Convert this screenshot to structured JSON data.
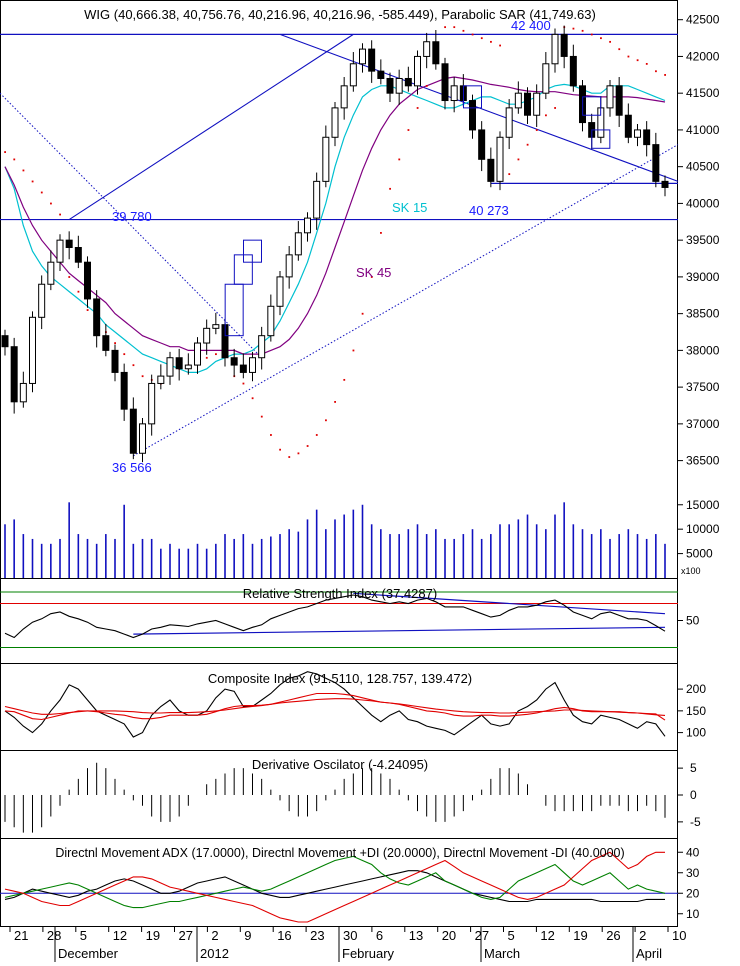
{
  "chart_data": [
    {
      "type": "candlestick",
      "title": "WIG (40,666.38, 40,756.76, 40,216.96, 40,216.96, -585.449), Parabolic SAR (41,749.63)",
      "ylim": [
        36100,
        42700
      ],
      "yticks": [
        36500,
        37000,
        37500,
        38000,
        38500,
        39000,
        39500,
        40000,
        40500,
        41000,
        41500,
        42000,
        42500
      ],
      "close": [
        38050,
        37300,
        37550,
        38450,
        38900,
        39200,
        39500,
        39400,
        39200,
        38700,
        38200,
        38000,
        37700,
        37200,
        36600,
        37000,
        37550,
        37650,
        37900,
        37750,
        37800,
        38100,
        38300,
        38350,
        37900,
        37800,
        37700,
        37900,
        38200,
        38600,
        39000,
        39300,
        39600,
        39800,
        40300,
        40900,
        41300,
        41600,
        41900,
        42100,
        41800,
        41700,
        41500,
        41700,
        41600,
        42000,
        42200,
        41900,
        41400,
        41600,
        41400,
        41000,
        40600,
        40300,
        40900,
        41300,
        41500,
        41200,
        41500,
        41900,
        42300,
        42000,
        41600,
        41100,
        40900,
        41300,
        41600,
        41200,
        40900,
        41000,
        40800,
        40300,
        40217
      ],
      "sar": [
        40700,
        40600,
        40450,
        40300,
        40150,
        40000,
        39850,
        39000,
        38800,
        38550,
        38400,
        38250,
        38100,
        37950,
        37800,
        37650,
        37600,
        37550,
        37700,
        37750,
        37800,
        37850,
        37900,
        37950,
        38000,
        37650,
        37550,
        37350,
        37100,
        36850,
        36650,
        36550,
        36600,
        36700,
        36850,
        37050,
        37300,
        37600,
        38000,
        38500,
        39000,
        39600,
        40200,
        40600,
        41000,
        41300,
        41600,
        42000,
        42400,
        42400,
        42350,
        42300,
        42250,
        42200,
        42150,
        40400,
        40600,
        40800,
        41000,
        41200,
        41300,
        42400,
        42380,
        42350,
        42300,
        42250,
        42200,
        42100,
        42000,
        41950,
        41900,
        41800,
        41749.63
      ],
      "sma15": [
        40500,
        40200,
        39700,
        39350,
        39150,
        39000,
        38900,
        38800,
        38700,
        38600,
        38500,
        38350,
        38250,
        38150,
        38050,
        37950,
        37900,
        37850,
        37800,
        37750,
        37700,
        37700,
        37750,
        37850,
        37900,
        37950,
        37950,
        38000,
        38100,
        38200,
        38400,
        38650,
        38900,
        39200,
        39600,
        40000,
        40500,
        40900,
        41200,
        41450,
        41550,
        41600,
        41600,
        41550,
        41500,
        41450,
        41400,
        41350,
        41300,
        41300,
        41350,
        41400,
        41450,
        41450,
        41400,
        41350,
        41350,
        41400,
        41450,
        41550,
        41600,
        41620,
        41600,
        41550,
        41500,
        41500,
        41600,
        41600,
        41600,
        41550,
        41500,
        41450,
        41400
      ],
      "sma45": [
        40500,
        40250,
        39950,
        39700,
        39500,
        39350,
        39200,
        39050,
        38950,
        38850,
        38750,
        38650,
        38500,
        38400,
        38300,
        38200,
        38150,
        38100,
        38050,
        38050,
        38000,
        38000,
        38000,
        38000,
        38000,
        38000,
        37950,
        37950,
        37950,
        38000,
        38050,
        38150,
        38300,
        38500,
        38750,
        39050,
        39400,
        39750,
        40100,
        40450,
        40750,
        41000,
        41200,
        41350,
        41450,
        41550,
        41600,
        41650,
        41700,
        41720,
        41700,
        41680,
        41650,
        41620,
        41600,
        41580,
        41550,
        41530,
        41520,
        41520,
        41520,
        41500,
        41480,
        41470,
        41460,
        41450,
        41450,
        41450,
        41450,
        41440,
        41420,
        41400,
        41380
      ],
      "volume": [
        11000,
        12000,
        9000,
        8000,
        7000,
        7000,
        8000,
        15500,
        9000,
        8000,
        7000,
        9000,
        8000,
        15000,
        7000,
        8000,
        8000,
        6000,
        7000,
        6000,
        6000,
        7000,
        6000,
        7000,
        9000,
        8000,
        9000,
        7000,
        8000,
        8500,
        9000,
        10000,
        9500,
        12000,
        14000,
        10000,
        12000,
        13000,
        14000,
        15000,
        11000,
        10000,
        9000,
        9000,
        10000,
        11000,
        9000,
        10000,
        8000,
        8000,
        9000,
        10000,
        8000,
        9000,
        11000,
        11000,
        12000,
        13000,
        11000,
        10000,
        13000,
        15500,
        11000,
        10000,
        9000,
        10000,
        8000,
        9000,
        10000,
        9000,
        8000,
        9000,
        7000
      ],
      "volume_yticks": [
        5000,
        10000,
        15000
      ],
      "volume_unit": "x100",
      "annotations": [
        "36 566",
        "39 780",
        "42 400",
        "40 273",
        "SK 15",
        "SK 45"
      ]
    },
    {
      "type": "line",
      "title": "Relative Strength Index (37.4287)",
      "ylim": [
        0,
        100
      ],
      "yticks": [
        50
      ],
      "reference_lines": [
        30,
        70
      ],
      "values": [
        35,
        30,
        40,
        48,
        52,
        58,
        60,
        55,
        52,
        48,
        42,
        40,
        38,
        34,
        30,
        34,
        40,
        42,
        45,
        44,
        43,
        46,
        48,
        50,
        46,
        42,
        38,
        42,
        45,
        52,
        56,
        60,
        64,
        66,
        70,
        74,
        76,
        78,
        80,
        78,
        74,
        72,
        70,
        72,
        70,
        74,
        76,
        72,
        66,
        66,
        66,
        62,
        58,
        54,
        56,
        62,
        66,
        66,
        68,
        72,
        74,
        68,
        60,
        56,
        52,
        58,
        60,
        56,
        52,
        52,
        50,
        44,
        37.43
      ]
    },
    {
      "type": "line",
      "title": "Composite Index (91.5110, 128.757, 139.472)",
      "ylim": [
        60,
        260
      ],
      "yticks": [
        100,
        150,
        200
      ],
      "series": [
        {
          "values": [
            150,
            135,
            115,
            100,
            120,
            150,
            175,
            210,
            200,
            175,
            150,
            140,
            130,
            120,
            90,
            100,
            140,
            160,
            175,
            150,
            140,
            140,
            150,
            180,
            200,
            195,
            160,
            160,
            175,
            190,
            210,
            225,
            230,
            240,
            235,
            225,
            215,
            200,
            180,
            160,
            140,
            125,
            140,
            150,
            130,
            125,
            115,
            110,
            105,
            95,
            110,
            125,
            140,
            120,
            115,
            120,
            150,
            160,
            175,
            200,
            215,
            175,
            140,
            125,
            120,
            140,
            135,
            130,
            120,
            110,
            125,
            120,
            91.51
          ]
        },
        {
          "values": [
            150,
            148,
            140,
            132,
            130,
            135,
            140,
            145,
            150,
            150,
            148,
            145,
            142,
            140,
            135,
            132,
            132,
            135,
            140,
            140,
            140,
            140,
            142,
            148,
            155,
            160,
            162,
            162,
            163,
            165,
            170,
            175,
            180,
            185,
            190,
            190,
            190,
            188,
            185,
            180,
            175,
            170,
            168,
            165,
            160,
            155,
            150,
            148,
            145,
            140,
            138,
            138,
            140,
            140,
            138,
            138,
            140,
            142,
            145,
            150,
            155,
            158,
            155,
            150,
            148,
            148,
            148,
            148,
            146,
            145,
            143,
            141,
            139.47
          ]
        },
        {
          "values": [
            160,
            155,
            150,
            145,
            142,
            142,
            144,
            146,
            148,
            150,
            150,
            150,
            150,
            149,
            148,
            146,
            145,
            145,
            146,
            146,
            146,
            147,
            148,
            150,
            152,
            155,
            158,
            160,
            162,
            165,
            168,
            170,
            172,
            174,
            176,
            177,
            178,
            178,
            177,
            175,
            173,
            170,
            168,
            166,
            163,
            160,
            157,
            154,
            152,
            150,
            148,
            147,
            146,
            146,
            145,
            145,
            146,
            147,
            148,
            149,
            150,
            152,
            152,
            151,
            150,
            149,
            148,
            147,
            146,
            145,
            144,
            143,
            128.76
          ]
        }
      ]
    },
    {
      "type": "histogram",
      "title": "Derivative Oscilator (-4.24095)",
      "ylim": [
        -8,
        8
      ],
      "yticks": [
        -5,
        0,
        5
      ],
      "values": [
        -5,
        -6,
        -7,
        -7,
        -6,
        -4,
        -2,
        1,
        3,
        5,
        6,
        5,
        3,
        1,
        -1,
        -2,
        -4,
        -5,
        -5,
        -4,
        -2,
        0,
        2,
        3,
        4,
        5,
        5,
        4,
        3,
        1,
        -1,
        -3,
        -4,
        -4,
        -3,
        -1,
        1,
        3,
        4,
        5,
        5,
        4,
        3,
        1,
        -1,
        -3,
        -4,
        -5,
        -5,
        -4,
        -3,
        -1,
        1,
        3,
        5,
        5,
        4,
        2,
        0,
        -2,
        -3,
        -3,
        -3,
        -3,
        -3,
        -2,
        -2,
        -2,
        -3,
        -3,
        -2,
        -3,
        -4.24
      ]
    },
    {
      "type": "line",
      "title": "Directnl Movement ADX (17.0000), Directnl Movement +DI (20.0000), Directnl Movement -DI (40.0000)",
      "ylim": [
        5,
        45
      ],
      "yticks": [
        10,
        20,
        30,
        40
      ],
      "reference_line": 20,
      "series": [
        {
          "values": [
            17,
            18,
            20,
            22,
            21,
            20,
            19,
            18,
            19,
            21,
            22,
            24,
            26,
            27,
            26,
            24,
            22,
            20,
            20,
            21,
            23,
            25,
            26,
            27,
            28,
            26,
            24,
            22,
            20,
            19,
            18,
            18,
            19,
            20,
            21,
            22,
            23,
            24,
            25,
            26,
            27,
            28,
            29,
            30,
            31,
            31,
            30,
            28,
            26,
            24,
            22,
            20,
            19,
            18,
            17,
            16,
            16,
            16,
            17,
            17,
            17,
            17,
            17,
            17,
            17,
            16,
            16,
            16,
            16,
            16,
            17,
            17,
            17
          ]
        },
        {
          "values": [
            18,
            19,
            20,
            21,
            22,
            23,
            24,
            25,
            24,
            22,
            20,
            18,
            16,
            14,
            13,
            13,
            14,
            15,
            16,
            16,
            17,
            18,
            19,
            20,
            21,
            22,
            23,
            22,
            21,
            22,
            24,
            26,
            28,
            30,
            32,
            34,
            36,
            37,
            38,
            36,
            34,
            30,
            27,
            25,
            24,
            26,
            28,
            30,
            26,
            24,
            22,
            20,
            18,
            17,
            18,
            22,
            26,
            28,
            30,
            32,
            34,
            30,
            26,
            24,
            26,
            28,
            30,
            26,
            22,
            24,
            22,
            21,
            20
          ]
        },
        {
          "values": [
            22,
            21,
            20,
            18,
            16,
            15,
            14,
            14,
            16,
            18,
            20,
            22,
            24,
            26,
            28,
            28,
            27,
            25,
            23,
            22,
            21,
            20,
            19,
            18,
            17,
            16,
            15,
            14,
            12,
            10,
            8,
            7,
            6,
            6,
            8,
            10,
            12,
            14,
            16,
            18,
            20,
            22,
            24,
            26,
            28,
            30,
            32,
            34,
            36,
            33,
            30,
            28,
            26,
            24,
            22,
            20,
            18,
            17,
            18,
            20,
            22,
            24,
            28,
            32,
            36,
            38,
            40,
            36,
            32,
            34,
            38,
            40,
            40
          ]
        }
      ]
    }
  ],
  "x_axis": {
    "day_labels": [
      "21",
      "28",
      "5",
      "12",
      "19",
      "27",
      "2",
      "9",
      "16",
      "23",
      "30",
      "6",
      "13",
      "20",
      "27",
      "5",
      "12",
      "19",
      "26",
      "2",
      "10"
    ],
    "month_labels": [
      "December",
      "2012",
      "February",
      "March",
      "April"
    ]
  }
}
